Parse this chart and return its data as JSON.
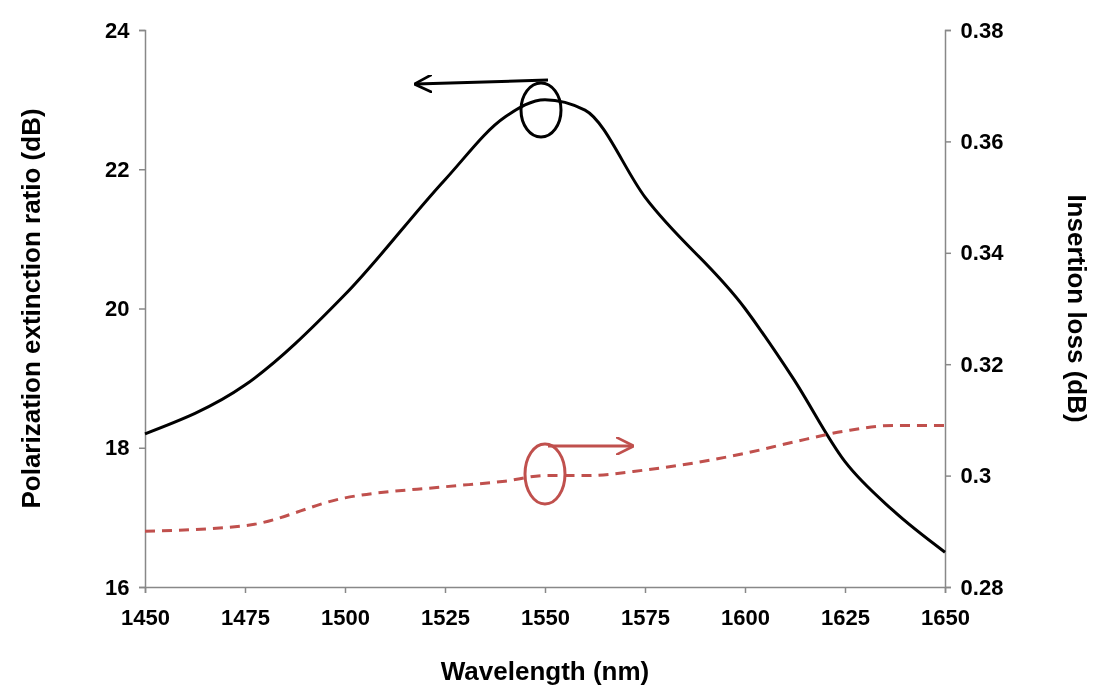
{
  "chart_data": {
    "type": "line",
    "xlabel": "Wavelength (nm)",
    "ylabel": "Polarization extinction ratio (dB)",
    "y2label": "Insertion loss (dB)",
    "x": [
      1450,
      1475,
      1500,
      1525,
      1540,
      1550,
      1560,
      1575,
      1600,
      1612,
      1625,
      1637,
      1650
    ],
    "xlim": [
      1450,
      1650
    ],
    "xticks": [
      1450,
      1475,
      1500,
      1525,
      1550,
      1575,
      1600,
      1625,
      1650
    ],
    "ylim": [
      16,
      24
    ],
    "yticks": [
      16,
      18,
      20,
      22,
      24
    ],
    "y2lim": [
      0.28,
      0.38
    ],
    "y2ticks": [
      0.28,
      0.3,
      0.32,
      0.34,
      0.36,
      0.38
    ],
    "grid": false,
    "series": [
      {
        "color": "#000000",
        "line_style": "solid",
        "values": [
          18.2,
          18.9,
          20.2,
          21.85,
          22.75,
          23.0,
          22.85,
          21.6,
          20.0,
          19.0,
          17.8,
          17.1,
          16.5
        ]
      },
      {
        "color": "#c0504d",
        "line_style": "dashed",
        "axis": "y2",
        "values": [
          0.29,
          0.291,
          0.296,
          0.298,
          0.299,
          0.3,
          0.3,
          0.301,
          0.304,
          0.306,
          0.308,
          0.309,
          0.309
        ]
      }
    ]
  }
}
